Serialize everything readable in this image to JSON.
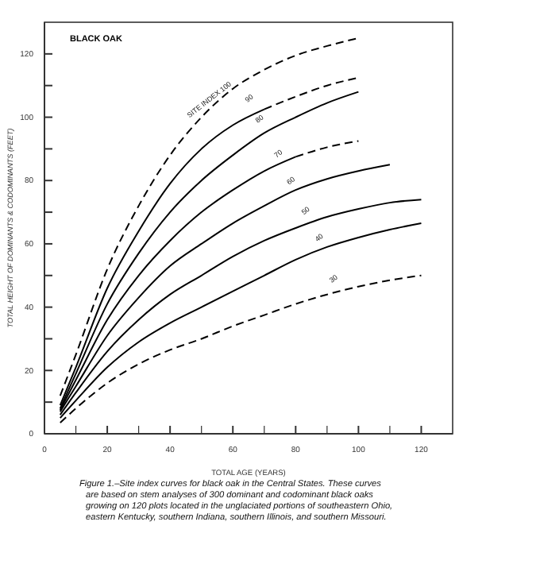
{
  "chart_data": {
    "type": "line",
    "title": "BLACK OAK",
    "xlabel": "TOTAL AGE (YEARS)",
    "ylabel": "TOTAL HEIGHT OF DOMINANTS & CODOMINANTS (FEET)",
    "xlim": [
      0,
      130
    ],
    "ylim": [
      0,
      130
    ],
    "xticks": [
      0,
      {
        "value": 10,
        "label": null
      },
      20,
      {
        "value": 30,
        "label": null
      },
      40,
      {
        "value": 50,
        "label": null
      },
      60,
      {
        "value": 70,
        "label": null
      },
      80,
      {
        "value": 90,
        "label": null
      },
      100,
      {
        "value": 110,
        "label": null
      },
      120
    ],
    "yticks": [
      0,
      {
        "value": 10,
        "label": null
      },
      20,
      {
        "value": 30,
        "label": null
      },
      40,
      {
        "value": 50,
        "label": null
      },
      60,
      {
        "value": 70,
        "label": null
      },
      80,
      {
        "value": 90,
        "label": null
      },
      100,
      {
        "value": 110,
        "label": null
      },
      120
    ],
    "grid": false,
    "marker": "none",
    "series": [
      {
        "color": "#000000",
        "line_style": "dashed",
        "x": [
          5,
          10,
          20,
          30,
          40,
          50,
          60,
          70,
          80,
          90,
          100
        ],
        "values": [
          12,
          25,
          52,
          72,
          88,
          100,
          109,
          115,
          119.5,
          122.5,
          125
        ]
      },
      {
        "color": "#000000",
        "line_style": "solid",
        "x": [
          5,
          10,
          20,
          30,
          40,
          50,
          60,
          70
        ],
        "values": [
          9,
          21,
          46,
          64,
          79,
          90,
          97.5,
          102.5
        ]
      },
      {
        "color": "#000000",
        "line_style": "dashed",
        "x": [
          70,
          80,
          90,
          100
        ],
        "values": [
          102.5,
          106.5,
          110,
          112.5
        ]
      },
      {
        "color": "#000000",
        "line_style": "solid",
        "x": [
          5,
          10,
          20,
          30,
          40,
          50,
          60,
          70,
          80,
          90,
          100
        ],
        "values": [
          8,
          19,
          41,
          57,
          70,
          80,
          88,
          95,
          100,
          104.5,
          108
        ]
      },
      {
        "color": "#000000",
        "line_style": "solid",
        "x": [
          5,
          10,
          20,
          30,
          40,
          50,
          60,
          70,
          80
        ],
        "values": [
          7.5,
          17,
          36,
          50,
          61,
          70,
          77,
          83,
          87.5
        ]
      },
      {
        "color": "#000000",
        "line_style": "dashed",
        "x": [
          80,
          90,
          100
        ],
        "values": [
          87.5,
          90.5,
          92.5
        ]
      },
      {
        "color": "#000000",
        "line_style": "solid",
        "x": [
          5,
          10,
          20,
          30,
          40,
          50,
          60,
          70,
          80,
          90,
          100,
          110
        ],
        "values": [
          7,
          15,
          31,
          43,
          53,
          60,
          66.5,
          72,
          77,
          80.5,
          83,
          85
        ]
      },
      {
        "color": "#000000",
        "line_style": "solid",
        "x": [
          5,
          10,
          20,
          30,
          40,
          50,
          60,
          70,
          80,
          90,
          100,
          110,
          120
        ],
        "values": [
          6,
          13,
          26,
          36,
          44,
          50,
          56,
          61,
          65,
          68.5,
          71,
          73,
          74
        ]
      },
      {
        "color": "#000000",
        "line_style": "solid",
        "x": [
          5,
          10,
          20,
          30,
          40,
          50,
          60,
          70,
          80,
          90,
          100,
          110,
          120
        ],
        "values": [
          5,
          10.5,
          21,
          29,
          35,
          40,
          45,
          50,
          55,
          59,
          62,
          64.5,
          66.5
        ]
      },
      {
        "color": "#000000",
        "line_style": "dashed",
        "x": [
          5,
          10,
          20,
          30,
          40,
          50,
          60,
          70,
          80,
          90,
          100,
          110,
          120
        ],
        "values": [
          3.5,
          8,
          16,
          22,
          26.5,
          30,
          34,
          37.5,
          41,
          44,
          46.5,
          48.5,
          50
        ]
      }
    ],
    "annotations": [
      {
        "text": "SITE INDEX 100",
        "x": 54,
        "y": 103.6
      },
      {
        "text": "90",
        "x": 66.7,
        "y": 104
      },
      {
        "text": "80",
        "x": 70,
        "y": 97.5
      },
      {
        "text": "70",
        "x": 76,
        "y": 86.5
      },
      {
        "text": "60",
        "x": 80,
        "y": 78
      },
      {
        "text": "50",
        "x": 84.7,
        "y": 68.5
      },
      {
        "text": "40",
        "x": 89,
        "y": 60
      },
      {
        "text": "30",
        "x": 93.6,
        "y": 47
      },
      "Figure 1.–Site index curves for black oak in the Central States. These curves are based on stem analyses of 300 dominant and codominant black oaks growing on 120 plots located in the unglaciated portions of southeastern Ohio, eastern Kentucky, southern Indiana, southern Illinois, and southern Missouri."
    ]
  }
}
